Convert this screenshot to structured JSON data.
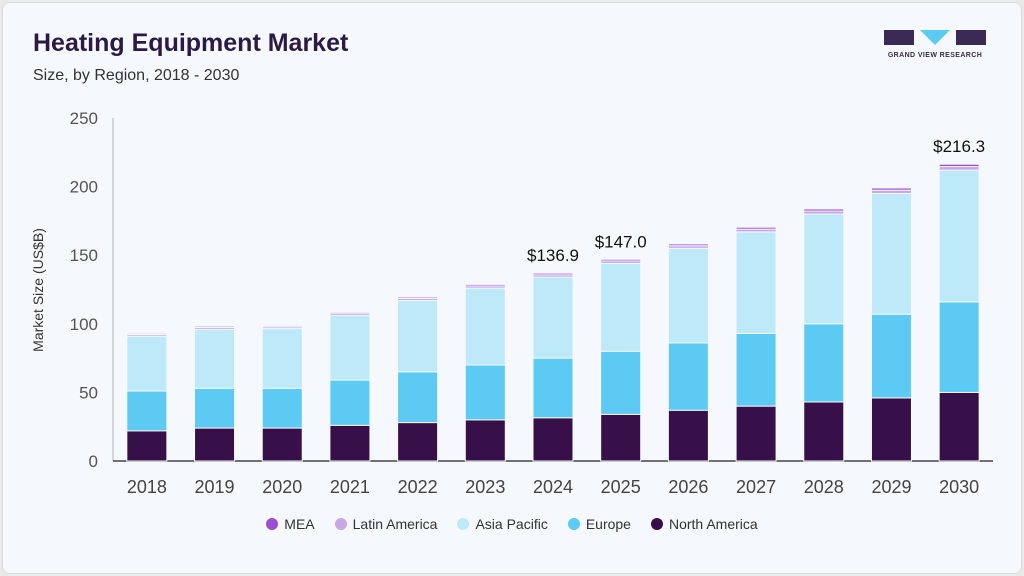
{
  "header": {
    "title": "Heating Equipment Market",
    "subtitle": "Size, by Region, 2018 - 2030"
  },
  "logo": {
    "text": "GRAND VIEW RESEARCH"
  },
  "chart_data": {
    "type": "bar",
    "stacked": true,
    "title": "Heating Equipment Market",
    "subtitle": "Size, by Region, 2018 - 2030",
    "xlabel": "",
    "ylabel": "Market Size (US$B)",
    "ylim": [
      0,
      250
    ],
    "yticks": [
      0,
      50,
      100,
      150,
      200,
      250
    ],
    "grid": false,
    "legend_position": "bottom",
    "categories": [
      "2018",
      "2019",
      "2020",
      "2021",
      "2022",
      "2023",
      "2024",
      "2025",
      "2026",
      "2027",
      "2028",
      "2029",
      "2030"
    ],
    "series": [
      {
        "name": "North America",
        "color": "#37104a",
        "values": [
          22,
          24,
          24,
          26,
          28,
          30,
          31.5,
          34,
          37,
          40,
          43,
          46,
          50
        ]
      },
      {
        "name": "Europe",
        "color": "#5ccaf3",
        "values": [
          29,
          29,
          29,
          33,
          37,
          40,
          43.5,
          46,
          49,
          53,
          57,
          61,
          66
        ]
      },
      {
        "name": "Asia Pacific",
        "color": "#bde9f9",
        "values": [
          40,
          43,
          43.5,
          47,
          52,
          56,
          59,
          64,
          69,
          74,
          80,
          88,
          96
        ]
      },
      {
        "name": "Latin America",
        "color": "#c9a6e6",
        "values": [
          1.2,
          1.3,
          1.2,
          1.4,
          1.5,
          1.6,
          1.7,
          1.8,
          1.9,
          2.0,
          2.2,
          2.4,
          2.6
        ]
      },
      {
        "name": "MEA",
        "color": "#9b4fd1",
        "values": [
          0.8,
          0.9,
          0.8,
          0.9,
          1.0,
          1.1,
          1.2,
          1.2,
          1.3,
          1.4,
          1.5,
          1.6,
          1.7
        ]
      }
    ],
    "annotations": [
      {
        "category": "2024",
        "label": "$136.9",
        "value": 136.9
      },
      {
        "category": "2025",
        "label": "$147.0",
        "value": 147.0
      },
      {
        "category": "2030",
        "label": "$216.3",
        "value": 216.3
      }
    ]
  },
  "legend_order": [
    "MEA",
    "Latin America",
    "Asia Pacific",
    "Europe",
    "North America"
  ]
}
